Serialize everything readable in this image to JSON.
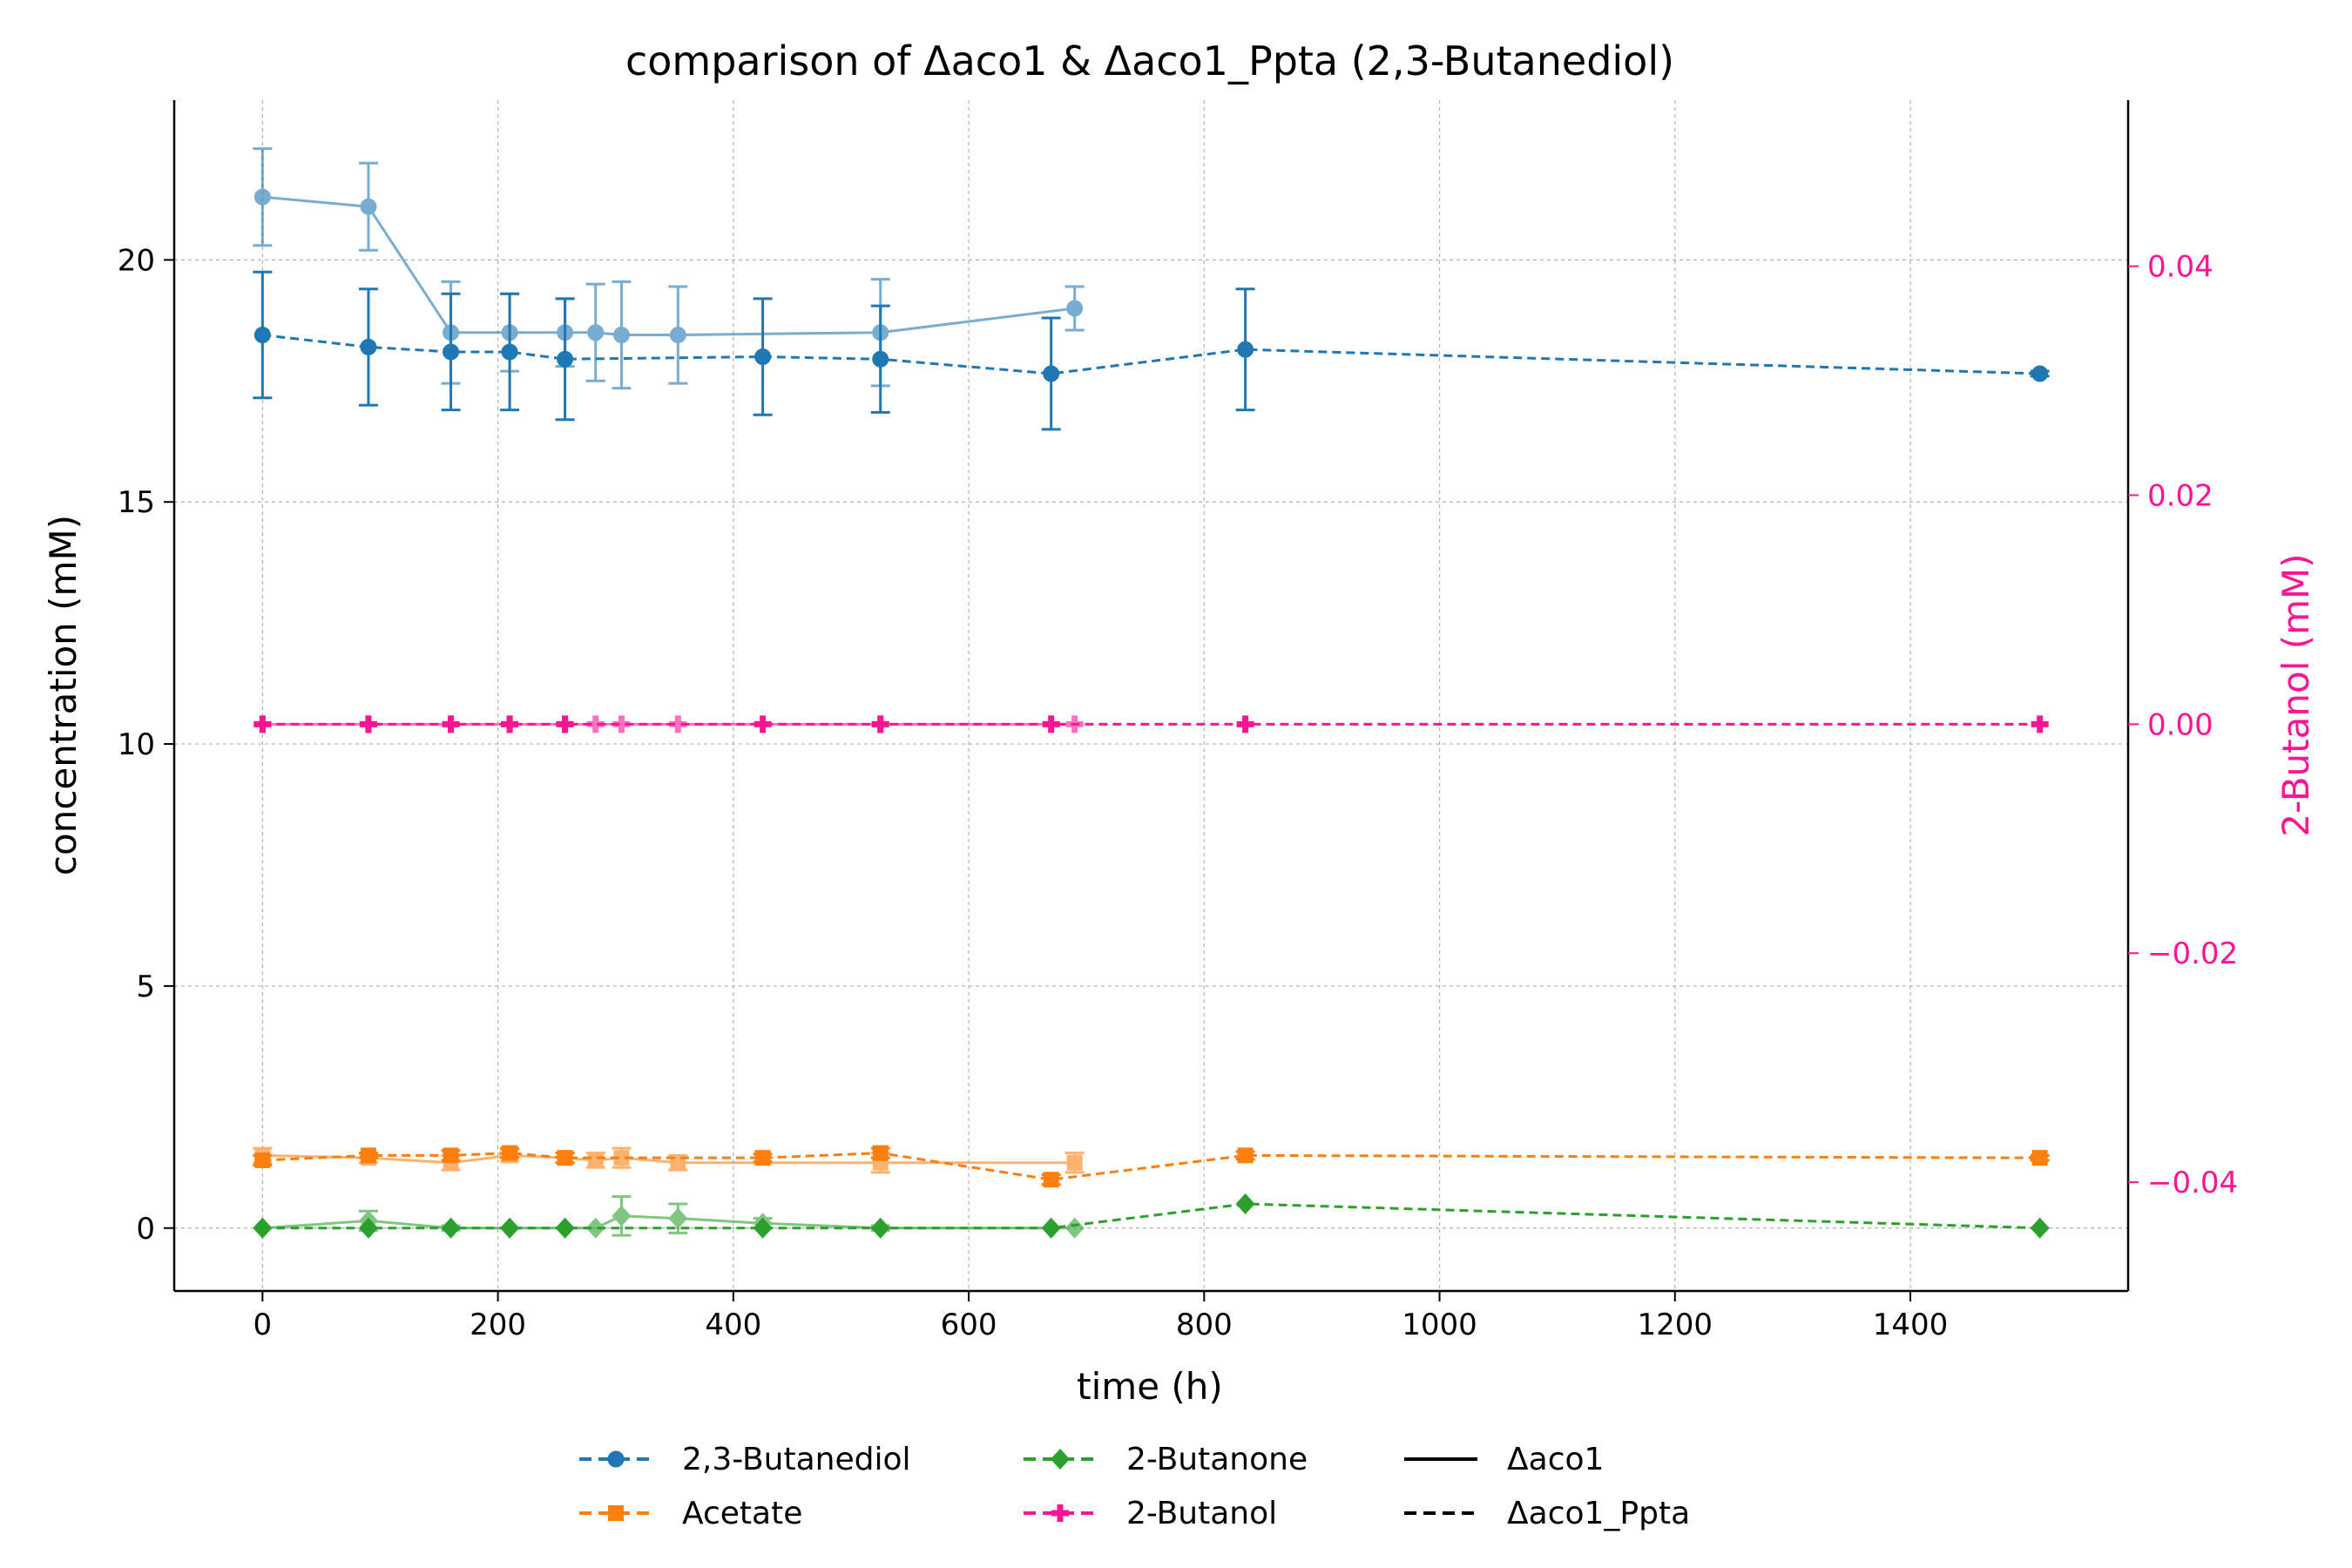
{
  "chart_data": {
    "type": "line",
    "title": "comparison of Δaco1 & Δaco1_Ppta (2,3-Butanediol)",
    "xlabel": "time (h)",
    "ylabel": "concentration (mM)",
    "y2label": "2-Butanol (mM)",
    "xlim": [
      -75,
      1585
    ],
    "ylim": [
      -1.3,
      23.3
    ],
    "y2lim": [
      -0.0495,
      0.0545
    ],
    "xticks": [
      0,
      200,
      400,
      600,
      800,
      1000,
      1200,
      1400
    ],
    "xtick_labels": [
      "0",
      "200",
      "400",
      "600",
      "800",
      "1000",
      "1200",
      "1400"
    ],
    "yticks": [
      0,
      5,
      10,
      15,
      20
    ],
    "ytick_labels": [
      "0",
      "5",
      "10",
      "15",
      "20"
    ],
    "y2ticks": [
      -0.04,
      -0.02,
      0.0,
      0.02,
      0.04
    ],
    "y2tick_labels": [
      "−0.04",
      "−0.02",
      "0.00",
      "0.02",
      "0.04"
    ],
    "grid": true,
    "legend_position": "bottom-center",
    "colors": {
      "butanediol": "#1f77b4",
      "acetate": "#ff7f0e",
      "butanone": "#2ca02c",
      "butanol": "#ff1493",
      "axis": "#000000",
      "grid": "#b0b0b0"
    },
    "legend": [
      {
        "label": "2,3-Butanediol",
        "color": "#1f77b4",
        "marker": "circle",
        "dash": true
      },
      {
        "label": "Acetate",
        "color": "#ff7f0e",
        "marker": "square",
        "dash": true
      },
      {
        "label": "2-Butanone",
        "color": "#2ca02c",
        "marker": "diamond",
        "dash": true
      },
      {
        "label": "2-Butanol",
        "color": "#ff1493",
        "marker": "plus",
        "dash": true
      },
      {
        "label": "Δaco1",
        "color": "#000000",
        "marker": "none",
        "dash": false
      },
      {
        "label": "Δaco1_Ppta",
        "color": "#000000",
        "marker": "none",
        "dash": true
      }
    ],
    "series": [
      {
        "name": "2,3-Butanediol",
        "strain": "Δaco1",
        "color": "#1f77b4",
        "marker": "circle",
        "dashed": false,
        "alpha": 0.6,
        "axis": "left",
        "x": [
          0,
          90,
          160,
          210,
          257,
          283,
          305,
          353,
          525,
          690
        ],
        "y": [
          21.3,
          21.1,
          18.5,
          18.5,
          18.5,
          18.5,
          18.45,
          18.45,
          18.5,
          19.0
        ],
        "err": [
          1.0,
          0.9,
          1.05,
          0.8,
          0.7,
          1.0,
          1.1,
          1.0,
          1.1,
          0.45
        ]
      },
      {
        "name": "2,3-Butanediol",
        "strain": "Δaco1_Ppta",
        "color": "#1f77b4",
        "marker": "circle",
        "dashed": true,
        "alpha": 1.0,
        "axis": "left",
        "x": [
          0,
          90,
          160,
          210,
          257,
          425,
          525,
          670,
          835,
          1510
        ],
        "y": [
          18.45,
          18.2,
          18.1,
          18.1,
          17.95,
          18.0,
          17.95,
          17.65,
          18.15,
          17.65
        ],
        "err": [
          1.3,
          1.2,
          1.2,
          1.2,
          1.25,
          1.2,
          1.1,
          1.15,
          1.25,
          0.05
        ]
      },
      {
        "name": "Acetate",
        "strain": "Δaco1",
        "color": "#ff7f0e",
        "marker": "square",
        "dashed": false,
        "alpha": 0.6,
        "axis": "left",
        "x": [
          0,
          90,
          160,
          210,
          257,
          283,
          305,
          353,
          525,
          690
        ],
        "y": [
          1.5,
          1.45,
          1.35,
          1.5,
          1.45,
          1.4,
          1.45,
          1.35,
          1.35,
          1.35
        ],
        "err": [
          0.15,
          0.1,
          0.15,
          0.12,
          0.1,
          0.15,
          0.2,
          0.15,
          0.2,
          0.2
        ]
      },
      {
        "name": "Acetate",
        "strain": "Δaco1_Ppta",
        "color": "#ff7f0e",
        "marker": "square",
        "dashed": true,
        "alpha": 1.0,
        "axis": "left",
        "x": [
          0,
          90,
          160,
          210,
          257,
          425,
          525,
          670,
          835,
          1510
        ],
        "y": [
          1.4,
          1.5,
          1.5,
          1.55,
          1.45,
          1.45,
          1.55,
          1.0,
          1.5,
          1.45
        ],
        "err": [
          0.1,
          0.05,
          0.1,
          0.1,
          0.1,
          0.08,
          0.1,
          0.1,
          0.08,
          0.05
        ]
      },
      {
        "name": "2-Butanone",
        "strain": "Δaco1",
        "color": "#2ca02c",
        "marker": "diamond",
        "dashed": false,
        "alpha": 0.6,
        "axis": "left",
        "x": [
          0,
          90,
          160,
          210,
          257,
          283,
          305,
          353,
          425,
          525,
          690
        ],
        "y": [
          0.0,
          0.15,
          0.0,
          0.0,
          0.0,
          0.0,
          0.25,
          0.2,
          0.1,
          0.0,
          0.0
        ],
        "err": [
          0.0,
          0.2,
          0.05,
          0.0,
          0.0,
          0.0,
          0.4,
          0.3,
          0.1,
          0.05,
          0.0
        ]
      },
      {
        "name": "2-Butanone",
        "strain": "Δaco1_Ppta",
        "color": "#2ca02c",
        "marker": "diamond",
        "dashed": true,
        "alpha": 1.0,
        "axis": "left",
        "x": [
          0,
          90,
          160,
          210,
          257,
          425,
          525,
          670,
          835,
          1510
        ],
        "y": [
          0.0,
          0.0,
          0.0,
          0.0,
          0.0,
          0.0,
          0.0,
          0.0,
          0.5,
          0.0
        ],
        "err": [
          0,
          0,
          0,
          0,
          0,
          0,
          0,
          0,
          0,
          0
        ]
      },
      {
        "name": "2-Butanol",
        "strain": "Δaco1",
        "color": "#ff1493",
        "marker": "plus",
        "dashed": false,
        "alpha": 0.6,
        "axis": "right",
        "x": [
          0,
          90,
          160,
          210,
          257,
          283,
          305,
          353,
          525,
          690
        ],
        "y": [
          0,
          0,
          0,
          0,
          0,
          0,
          0,
          0,
          0,
          0
        ],
        "err": [
          0,
          0,
          0,
          0,
          0,
          0,
          0,
          0,
          0,
          0
        ]
      },
      {
        "name": "2-Butanol",
        "strain": "Δaco1_Ppta",
        "color": "#ff1493",
        "marker": "plus",
        "dashed": true,
        "alpha": 1.0,
        "axis": "right",
        "x": [
          0,
          90,
          160,
          210,
          257,
          425,
          525,
          670,
          835,
          1510
        ],
        "y": [
          0,
          0,
          0,
          0,
          0,
          0,
          0,
          0,
          0,
          0
        ],
        "err": [
          0,
          0,
          0,
          0,
          0,
          0,
          0,
          0,
          0,
          0
        ]
      }
    ]
  }
}
